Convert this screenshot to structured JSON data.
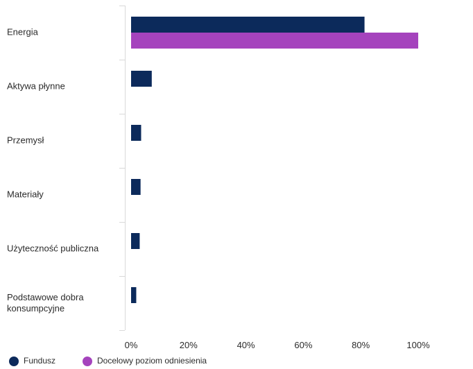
{
  "chart_data": {
    "type": "bar",
    "orientation": "horizontal",
    "categories": [
      "Energia",
      "Aktywa płynne",
      "Przemysł",
      "Materiały",
      "Użyteczność publiczna",
      "Podstawowe dobra konsumpcyjne"
    ],
    "series": [
      {
        "name": "Fundusz",
        "color": "#0c2a5b",
        "values": [
          81.3,
          7.2,
          3.5,
          3.3,
          3.0,
          1.8
        ]
      },
      {
        "name": "Docelowy poziom odniesienia",
        "color": "#a543bd",
        "values": [
          100,
          null,
          null,
          null,
          null,
          null
        ]
      }
    ],
    "x_ticks": [
      "0%",
      "20%",
      "40%",
      "60%",
      "80%",
      "100%"
    ],
    "xlim": [
      0,
      120
    ],
    "title": "",
    "xlabel": "",
    "ylabel": "",
    "grid": false,
    "legend_position": "bottom-left"
  }
}
